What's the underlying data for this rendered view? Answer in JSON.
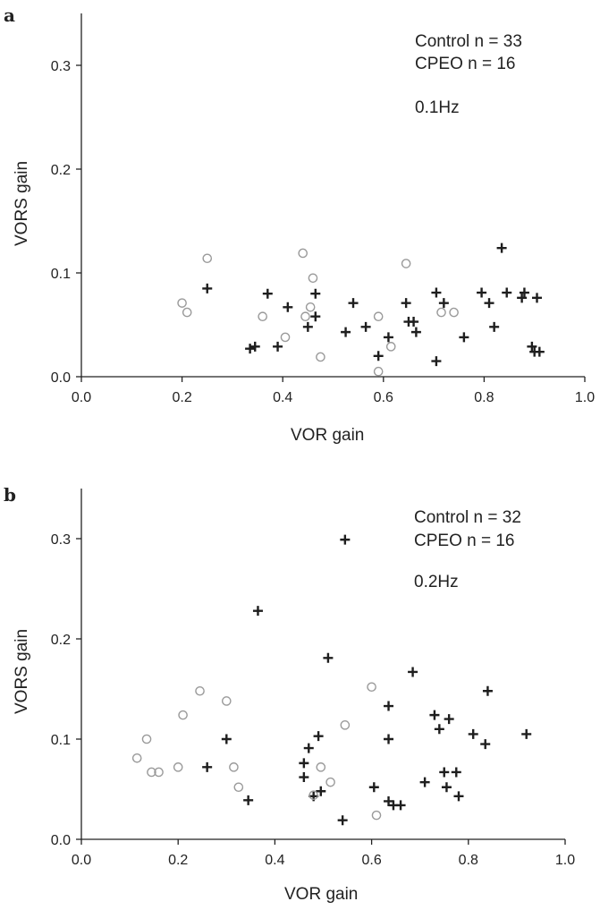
{
  "chart_data": [
    {
      "panel_label": "a",
      "type": "scatter",
      "xlabel": "VOR gain",
      "ylabel": "VORS gain",
      "xlim": [
        0.0,
        1.0
      ],
      "ylim": [
        0.0,
        0.35
      ],
      "x_ticks": [
        "0.0",
        "0.2",
        "0.4",
        "0.6",
        "0.8",
        "1.0"
      ],
      "y_ticks": [
        "0.0",
        "0.1",
        "0.2",
        "0.3"
      ],
      "annotations": [
        "Control n = 33",
        "CPEO n = 16",
        "0.1Hz"
      ],
      "series": [
        {
          "marker": "plus",
          "color": "#1e1e1e",
          "points": [
            [
              0.25,
              0.085
            ],
            [
              0.335,
              0.027
            ],
            [
              0.345,
              0.029
            ],
            [
              0.37,
              0.08
            ],
            [
              0.39,
              0.029
            ],
            [
              0.41,
              0.067
            ],
            [
              0.45,
              0.048
            ],
            [
              0.465,
              0.08
            ],
            [
              0.465,
              0.058
            ],
            [
              0.525,
              0.043
            ],
            [
              0.54,
              0.071
            ],
            [
              0.565,
              0.048
            ],
            [
              0.59,
              0.02
            ],
            [
              0.61,
              0.038
            ],
            [
              0.645,
              0.071
            ],
            [
              0.65,
              0.053
            ],
            [
              0.66,
              0.053
            ],
            [
              0.665,
              0.043
            ],
            [
              0.705,
              0.081
            ],
            [
              0.705,
              0.015
            ],
            [
              0.72,
              0.071
            ],
            [
              0.76,
              0.038
            ],
            [
              0.795,
              0.081
            ],
            [
              0.81,
              0.071
            ],
            [
              0.82,
              0.048
            ],
            [
              0.835,
              0.124
            ],
            [
              0.845,
              0.081
            ],
            [
              0.875,
              0.076
            ],
            [
              0.88,
              0.081
            ],
            [
              0.895,
              0.029
            ],
            [
              0.9,
              0.024
            ],
            [
              0.905,
              0.076
            ],
            [
              0.91,
              0.024
            ]
          ]
        },
        {
          "marker": "circle",
          "color": "#9a9a9a",
          "points": [
            [
              0.2,
              0.071
            ],
            [
              0.21,
              0.062
            ],
            [
              0.25,
              0.114
            ],
            [
              0.36,
              0.058
            ],
            [
              0.405,
              0.038
            ],
            [
              0.44,
              0.119
            ],
            [
              0.445,
              0.058
            ],
            [
              0.455,
              0.067
            ],
            [
              0.46,
              0.095
            ],
            [
              0.475,
              0.019
            ],
            [
              0.59,
              0.058
            ],
            [
              0.59,
              0.005
            ],
            [
              0.615,
              0.029
            ],
            [
              0.645,
              0.109
            ],
            [
              0.715,
              0.062
            ],
            [
              0.74,
              0.062
            ]
          ]
        }
      ]
    },
    {
      "panel_label": "b",
      "type": "scatter",
      "xlabel": "VOR gain",
      "ylabel": "VORS gain",
      "xlim": [
        0.0,
        1.0
      ],
      "ylim": [
        0.0,
        0.35
      ],
      "x_ticks": [
        "0.0",
        "0.2",
        "0.4",
        "0.6",
        "0.8",
        "1.0"
      ],
      "y_ticks": [
        "0.0",
        "0.1",
        "0.2",
        "0.3"
      ],
      "annotations": [
        "Control n = 32",
        "CPEO n = 16",
        "0.2Hz"
      ],
      "series": [
        {
          "marker": "plus",
          "color": "#1e1e1e",
          "points": [
            [
              0.26,
              0.072
            ],
            [
              0.3,
              0.1
            ],
            [
              0.345,
              0.039
            ],
            [
              0.365,
              0.228
            ],
            [
              0.46,
              0.076
            ],
            [
              0.46,
              0.062
            ],
            [
              0.47,
              0.091
            ],
            [
              0.48,
              0.043
            ],
            [
              0.49,
              0.103
            ],
            [
              0.495,
              0.048
            ],
            [
              0.51,
              0.181
            ],
            [
              0.54,
              0.019
            ],
            [
              0.545,
              0.299
            ],
            [
              0.605,
              0.052
            ],
            [
              0.635,
              0.133
            ],
            [
              0.635,
              0.1
            ],
            [
              0.635,
              0.038
            ],
            [
              0.645,
              0.034
            ],
            [
              0.66,
              0.034
            ],
            [
              0.685,
              0.167
            ],
            [
              0.71,
              0.057
            ],
            [
              0.73,
              0.124
            ],
            [
              0.74,
              0.11
            ],
            [
              0.75,
              0.067
            ],
            [
              0.755,
              0.052
            ],
            [
              0.76,
              0.12
            ],
            [
              0.775,
              0.067
            ],
            [
              0.78,
              0.043
            ],
            [
              0.81,
              0.105
            ],
            [
              0.835,
              0.095
            ],
            [
              0.84,
              0.148
            ],
            [
              0.92,
              0.105
            ]
          ]
        },
        {
          "marker": "circle",
          "color": "#9a9a9a",
          "points": [
            [
              0.115,
              0.081
            ],
            [
              0.135,
              0.1
            ],
            [
              0.145,
              0.067
            ],
            [
              0.16,
              0.067
            ],
            [
              0.2,
              0.072
            ],
            [
              0.21,
              0.124
            ],
            [
              0.245,
              0.148
            ],
            [
              0.3,
              0.138
            ],
            [
              0.315,
              0.072
            ],
            [
              0.325,
              0.052
            ],
            [
              0.48,
              0.044
            ],
            [
              0.495,
              0.072
            ],
            [
              0.515,
              0.057
            ],
            [
              0.545,
              0.114
            ],
            [
              0.6,
              0.152
            ],
            [
              0.61,
              0.024
            ]
          ]
        }
      ]
    }
  ]
}
